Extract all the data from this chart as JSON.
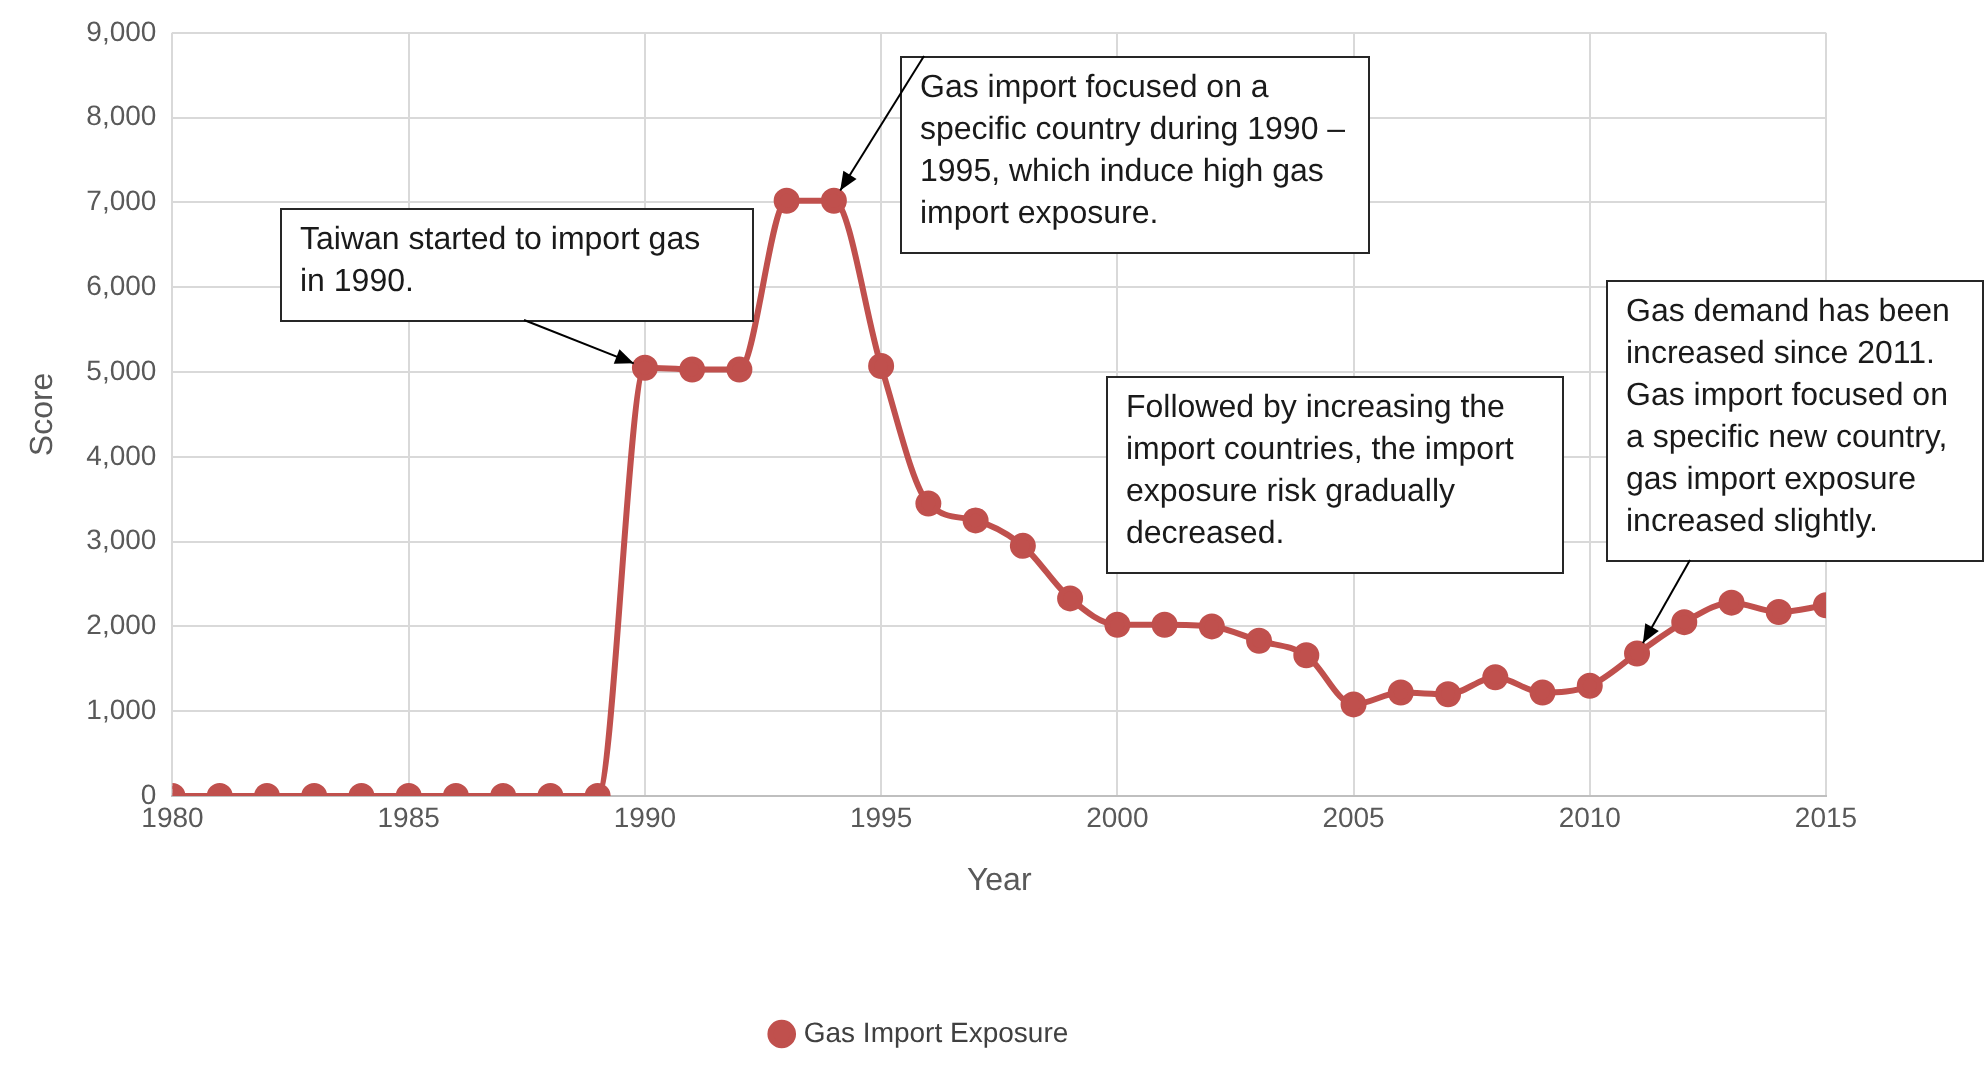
{
  "chart_data": {
    "type": "line",
    "xlabel": "Year",
    "ylabel": "Score",
    "x": [
      1980,
      1981,
      1982,
      1983,
      1984,
      1985,
      1986,
      1987,
      1988,
      1989,
      1990,
      1991,
      1992,
      1993,
      1994,
      1995,
      1996,
      1997,
      1998,
      1999,
      2000,
      2001,
      2002,
      2003,
      2004,
      2005,
      2006,
      2007,
      2008,
      2009,
      2010,
      2011,
      2012,
      2013,
      2014,
      2015
    ],
    "series": [
      {
        "name": "Gas Import Exposure",
        "color": "#c0504d",
        "values": [
          0,
          0,
          0,
          0,
          0,
          0,
          0,
          0,
          0,
          0,
          5050,
          5030,
          5030,
          7020,
          7020,
          5070,
          3450,
          3250,
          2950,
          2330,
          2020,
          2020,
          2000,
          1830,
          1660,
          1080,
          1220,
          1200,
          1400,
          1220,
          1300,
          1680,
          2050,
          2280,
          2170,
          2250
        ]
      }
    ],
    "xlim": [
      1980,
      2015
    ],
    "xticks": [
      1980,
      1985,
      1990,
      1995,
      2000,
      2005,
      2010,
      2015
    ],
    "ylim": [
      0,
      9000
    ],
    "yticks": [
      {
        "value": 0,
        "label": "0"
      },
      {
        "value": 1000,
        "label": "1,000"
      },
      {
        "value": 2000,
        "label": "2,000"
      },
      {
        "value": 3000,
        "label": "3,000"
      },
      {
        "value": 4000,
        "label": "4,000"
      },
      {
        "value": 5000,
        "label": "5,000"
      },
      {
        "value": 6000,
        "label": "6,000"
      },
      {
        "value": 7000,
        "label": "7,000"
      },
      {
        "value": 8000,
        "label": "8,000"
      },
      {
        "value": 9000,
        "label": "9,000"
      }
    ],
    "grid": true,
    "legend": "bottom",
    "marker": "circle",
    "line_style": "solid",
    "annotations": [
      {
        "text": "Taiwan started to import gas in 1990.",
        "x": 1990,
        "y": 5050
      },
      {
        "text": "Gas import focused on a specific country during 1990 – 1995, which induce high gas import exposure.",
        "x": 1994,
        "y": 7020
      },
      "Followed by increasing the import countries, the import exposure risk gradually decreased.",
      {
        "text": "Gas demand has been increased since 2011. Gas import focused on a specific new country, gas import exposure increased slightly.",
        "x": 2011,
        "y": 1680
      }
    ]
  }
}
